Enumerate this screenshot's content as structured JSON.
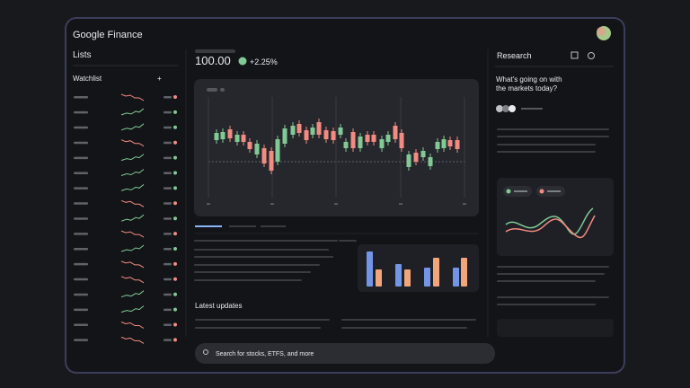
{
  "header": {
    "logo": "Google Finance"
  },
  "sidebar": {
    "title": "Lists",
    "watchlist": "Watchlist"
  },
  "quote": {
    "price": "100.00",
    "change": "+2.25%"
  },
  "research": {
    "title": "Research",
    "question": [
      "What's going on with",
      "the markets today?"
    ]
  },
  "updates": {
    "title": "Latest updates"
  },
  "search": {
    "placeholder": "Search for stocks, ETFS, and more"
  }
}
